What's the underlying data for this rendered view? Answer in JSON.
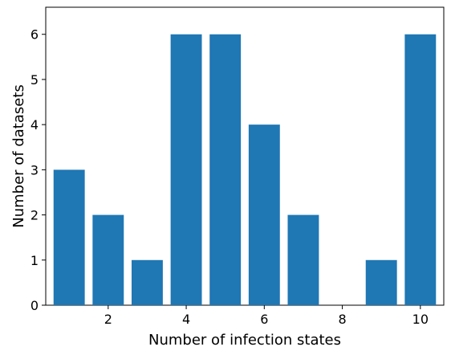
{
  "chart_data": {
    "type": "bar",
    "x": [
      1,
      2,
      3,
      4,
      5,
      6,
      7,
      8,
      9,
      10
    ],
    "values": [
      3,
      2,
      1,
      6,
      6,
      4,
      2,
      0,
      1,
      6
    ],
    "xlabel": "Number of infection states",
    "ylabel": "Number of datasets",
    "xlim": [
      0.4,
      10.6
    ],
    "ylim": [
      0,
      6.6
    ],
    "xticks": [
      2,
      4,
      6,
      8,
      10
    ],
    "yticks": [
      0,
      1,
      2,
      3,
      4,
      5,
      6
    ],
    "bar_width": 0.8,
    "bar_color": "#1f77b4",
    "grid": false,
    "legend": "none"
  }
}
